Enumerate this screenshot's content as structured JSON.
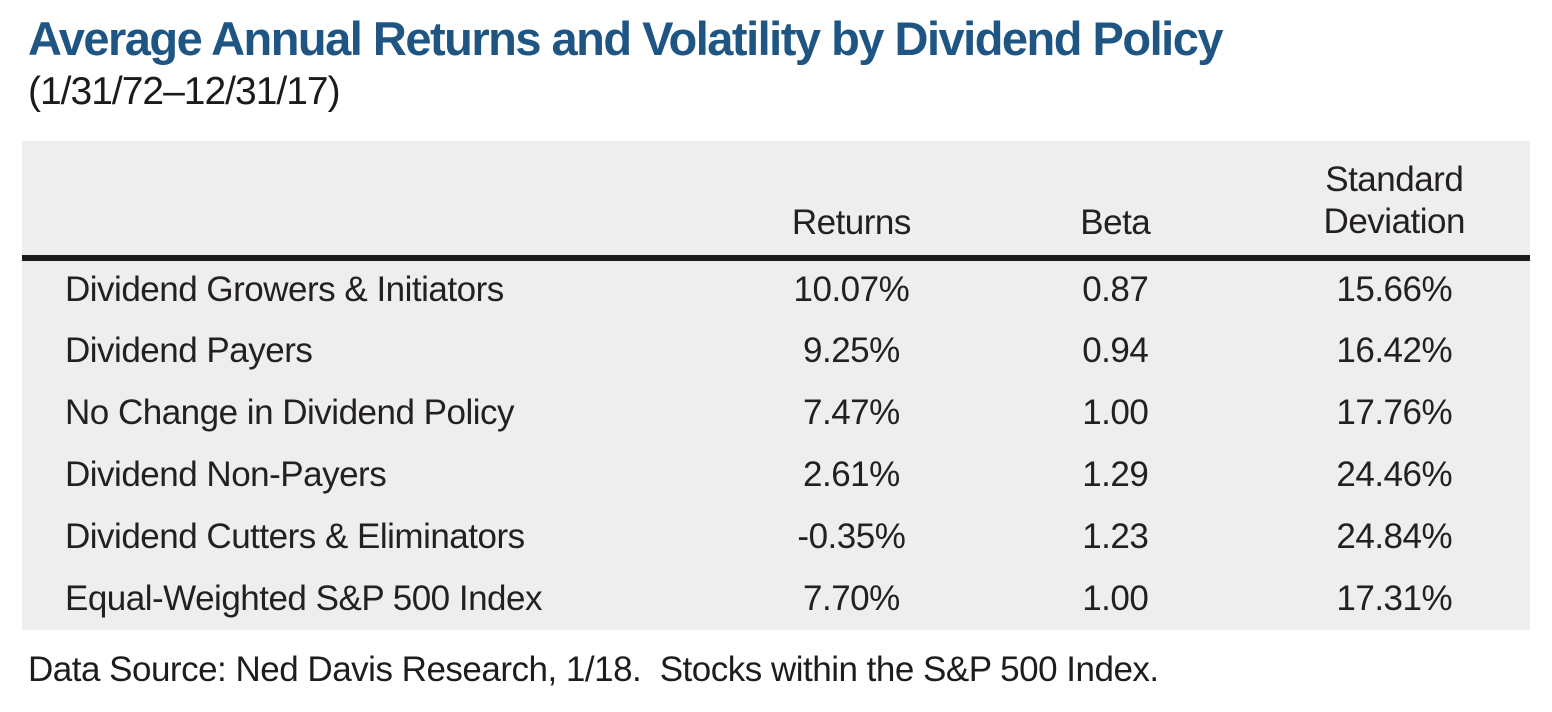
{
  "header": {
    "title": "Average Annual Returns and Volatility by Dividend Policy",
    "date_range": "(1/31/72–12/31/17)"
  },
  "chart_data": {
    "type": "table",
    "columns": [
      "",
      "Returns",
      "Beta",
      "Standard\nDeviation"
    ],
    "rows": [
      {
        "label": "Dividend Growers & Initiators",
        "returns": "10.07%",
        "beta": "0.87",
        "std_dev": "15.66%"
      },
      {
        "label": "Dividend Payers",
        "returns": "9.25%",
        "beta": "0.94",
        "std_dev": "16.42%"
      },
      {
        "label": "No Change in Dividend Policy",
        "returns": "7.47%",
        "beta": "1.00",
        "std_dev": "17.76%"
      },
      {
        "label": "Dividend Non-Payers",
        "returns": "2.61%",
        "beta": "1.29",
        "std_dev": "24.46%"
      },
      {
        "label": "Dividend Cutters & Eliminators",
        "returns": "-0.35%",
        "beta": "1.23",
        "std_dev": "24.84%"
      },
      {
        "label": "Equal-Weighted S&P 500 Index",
        "returns": "7.70%",
        "beta": "1.00",
        "std_dev": "17.31%"
      }
    ]
  },
  "footer": {
    "source_note": "Data Source: Ned Davis Research, 1/18.  Stocks within the S&P 500 Index."
  },
  "colors": {
    "title_blue": "#1f5582",
    "table_background": "#eeeeee",
    "text": "#242021",
    "header_rule": "#1b1b1b"
  }
}
